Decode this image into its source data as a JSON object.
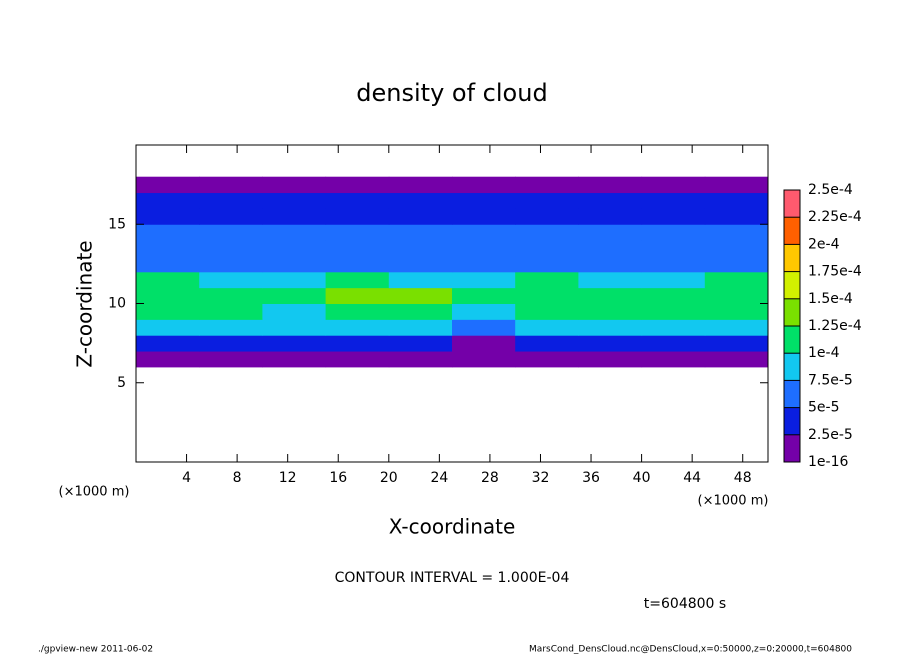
{
  "chart_data": {
    "type": "contour",
    "title": "density of cloud",
    "x_label": "X-coordinate",
    "y_label": "Z-coordinate",
    "x_unit_label": "(×1000 m)",
    "y_unit_label": "(×1000 m)",
    "xlim": [
      0,
      50
    ],
    "ylim": [
      0,
      20
    ],
    "xticks": [
      4,
      8,
      12,
      16,
      20,
      24,
      28,
      32,
      36,
      40,
      44,
      48
    ],
    "yticks": [
      5,
      10,
      15
    ],
    "x": [
      2.5,
      7.5,
      12.5,
      17.5,
      22.5,
      27.5,
      32.5,
      37.5,
      42.5,
      47.5
    ],
    "z": [
      0.5,
      1.5,
      2.5,
      3.5,
      4.5,
      5.5,
      6.5,
      7.5,
      8.5,
      9.5,
      10.5,
      11.5,
      12.5,
      13.5,
      14.5,
      15.5,
      16.5,
      17.5,
      18.5,
      19.5
    ],
    "values": [
      [
        null,
        null,
        null,
        null,
        null,
        null,
        null,
        null,
        null,
        null
      ],
      [
        null,
        null,
        null,
        null,
        null,
        null,
        null,
        null,
        null,
        null
      ],
      [
        null,
        null,
        null,
        null,
        null,
        null,
        null,
        null,
        null,
        null
      ],
      [
        null,
        null,
        null,
        null,
        null,
        null,
        null,
        null,
        null,
        null
      ],
      [
        null,
        null,
        null,
        null,
        null,
        null,
        null,
        null,
        null,
        null
      ],
      [
        null,
        null,
        null,
        null,
        null,
        null,
        null,
        null,
        null,
        null
      ],
      [
        8e-06,
        8e-06,
        8e-06,
        8e-06,
        8e-06,
        8e-06,
        8e-06,
        8e-06,
        8e-06,
        8e-06
      ],
      [
        4e-05,
        4e-05,
        4e-05,
        4e-05,
        4e-05,
        2e-05,
        4e-05,
        4e-05,
        4e-05,
        4e-05
      ],
      [
        8e-05,
        8e-05,
        8e-05,
        8e-05,
        8e-05,
        6e-05,
        8e-05,
        8e-05,
        8e-05,
        8e-05
      ],
      [
        0.00011,
        0.00011,
        9e-05,
        0.00012,
        0.00012,
        8e-05,
        0.00011,
        0.00011,
        0.00011,
        0.00011
      ],
      [
        0.00011,
        0.00011,
        0.00011,
        0.00014,
        0.00013,
        0.00011,
        0.00012,
        0.00011,
        0.00011,
        0.00011
      ],
      [
        0.0001,
        9e-05,
        9e-05,
        0.00011,
        9e-05,
        9e-05,
        0.0001,
        9e-05,
        9e-05,
        0.0001
      ],
      [
        7e-05,
        7e-05,
        7e-05,
        7e-05,
        7e-05,
        7e-05,
        7e-05,
        7e-05,
        7e-05,
        7e-05
      ],
      [
        6e-05,
        6e-05,
        6e-05,
        6e-05,
        6e-05,
        6e-05,
        6e-05,
        6e-05,
        6e-05,
        6e-05
      ],
      [
        5e-05,
        5e-05,
        5e-05,
        5e-05,
        5e-05,
        5e-05,
        5e-05,
        5e-05,
        5e-05,
        5e-05
      ],
      [
        4e-05,
        4e-05,
        4e-05,
        4e-05,
        4e-05,
        4e-05,
        4e-05,
        4e-05,
        4e-05,
        4e-05
      ],
      [
        3e-05,
        3e-05,
        3e-05,
        3e-05,
        3e-05,
        3e-05,
        3e-05,
        3e-05,
        3e-05,
        3e-05
      ],
      [
        8e-06,
        8e-06,
        8e-06,
        8e-06,
        8e-06,
        8e-06,
        8e-06,
        8e-06,
        8e-06,
        8e-06
      ],
      [
        null,
        null,
        null,
        null,
        null,
        null,
        null,
        null,
        null,
        null
      ],
      [
        null,
        null,
        null,
        null,
        null,
        null,
        null,
        null,
        null,
        null
      ]
    ],
    "levels": [
      {
        "value": 1e-16,
        "label": "1e-16"
      },
      {
        "value": 2.5e-05,
        "label": "2.5e-5"
      },
      {
        "value": 5e-05,
        "label": "5e-5"
      },
      {
        "value": 7.5e-05,
        "label": "7.5e-5"
      },
      {
        "value": 0.0001,
        "label": "1e-4"
      },
      {
        "value": 0.000125,
        "label": "1.25e-4"
      },
      {
        "value": 0.00015,
        "label": "1.5e-4"
      },
      {
        "value": 0.000175,
        "label": "1.75e-4"
      },
      {
        "value": 0.0002,
        "label": "2e-4"
      },
      {
        "value": 0.000225,
        "label": "2.25e-4"
      },
      {
        "value": 0.00025,
        "label": "2.5e-4"
      }
    ],
    "colors": [
      "#7400a8",
      "#0a1ee0",
      "#1e6eff",
      "#12c8f0",
      "#00e068",
      "#7ae000",
      "#d2f000",
      "#ffc800",
      "#ff6000",
      "#ff5a6e"
    ],
    "annotations": [
      "CONTOUR INTERVAL = 1.000E-04",
      "t=604800 s"
    ]
  },
  "footer": {
    "left": "./gpview-new  2011-06-02",
    "right": "MarsCond_DensCloud.nc@DensCloud,x=0:50000,z=0:20000,t=604800"
  }
}
